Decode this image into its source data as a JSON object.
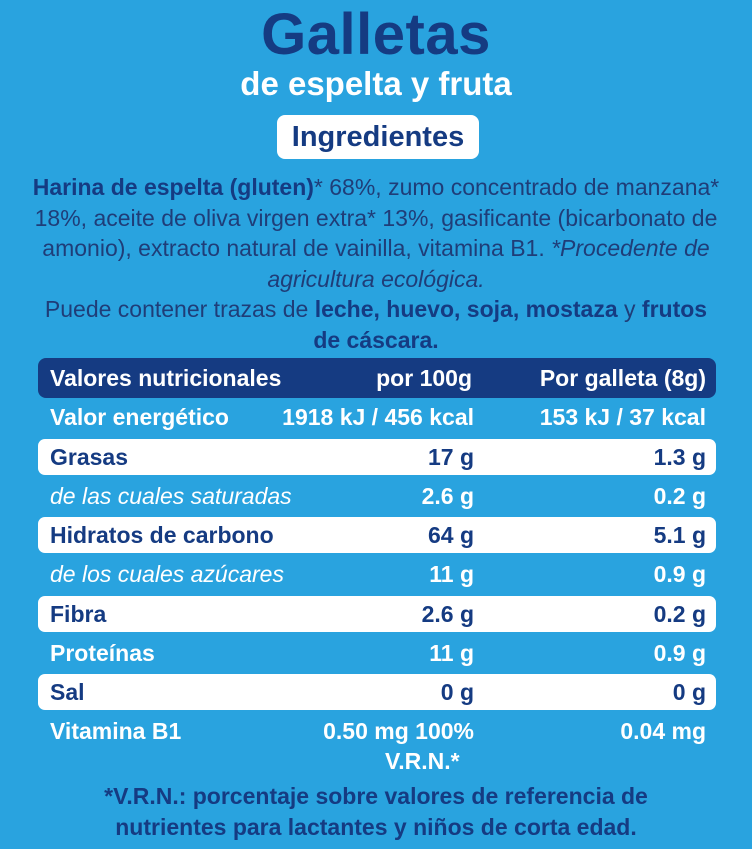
{
  "product": {
    "title": "Galletas",
    "subtitle": "de espelta y fruta"
  },
  "ingredients": {
    "badge": "Ingredientes",
    "bold_lead": "Harina de espelta (gluten)",
    "text_1": "* 68%, zumo concentrado de manzana* 18%, aceite de oliva virgen extra* 13%, gasificante (bicarbonato de amonio), extracto natural de vainilla, vitamina B1. ",
    "italic_note": "*Procedente de agricultura ecológica.",
    "allergen_intro": "Puede contener trazas de ",
    "allergens_1": "leche, huevo, soja, mostaza",
    "allergen_and": " y ",
    "allergens_2": "frutos de cáscara."
  },
  "nutrition": {
    "headers": [
      "Valores nutricionales",
      "por 100g",
      "Por galleta (8g)"
    ],
    "rows": [
      [
        "Valor energético",
        "1918 kJ / 456 kcal",
        "153 kJ / 37 kcal"
      ],
      [
        "Grasas",
        "17 g",
        "1.3 g"
      ],
      [
        "de las cuales saturadas",
        "2.6 g",
        "0.2 g"
      ],
      [
        "Hidratos de carbono",
        "64 g",
        "5.1 g"
      ],
      [
        "de los cuales azúcares",
        "11 g",
        "0.9 g"
      ],
      [
        "Fibra",
        "2.6 g",
        "0.2 g"
      ],
      [
        "Proteínas",
        "11 g",
        "0.9 g"
      ],
      [
        "Sal",
        "0 g",
        "0 g"
      ],
      [
        "Vitamina B1",
        "0.50 mg 100%",
        "0.04 mg"
      ]
    ],
    "vrn_label": "V.R.N.*"
  },
  "footnote": {
    "line1": "*V.R.N.: porcentaje sobre valores de referencia de",
    "line2": "nutrientes para lactantes y niños de corta edad."
  },
  "colors": {
    "background": "#29a3df",
    "navy": "#153b82",
    "white": "#ffffff"
  }
}
